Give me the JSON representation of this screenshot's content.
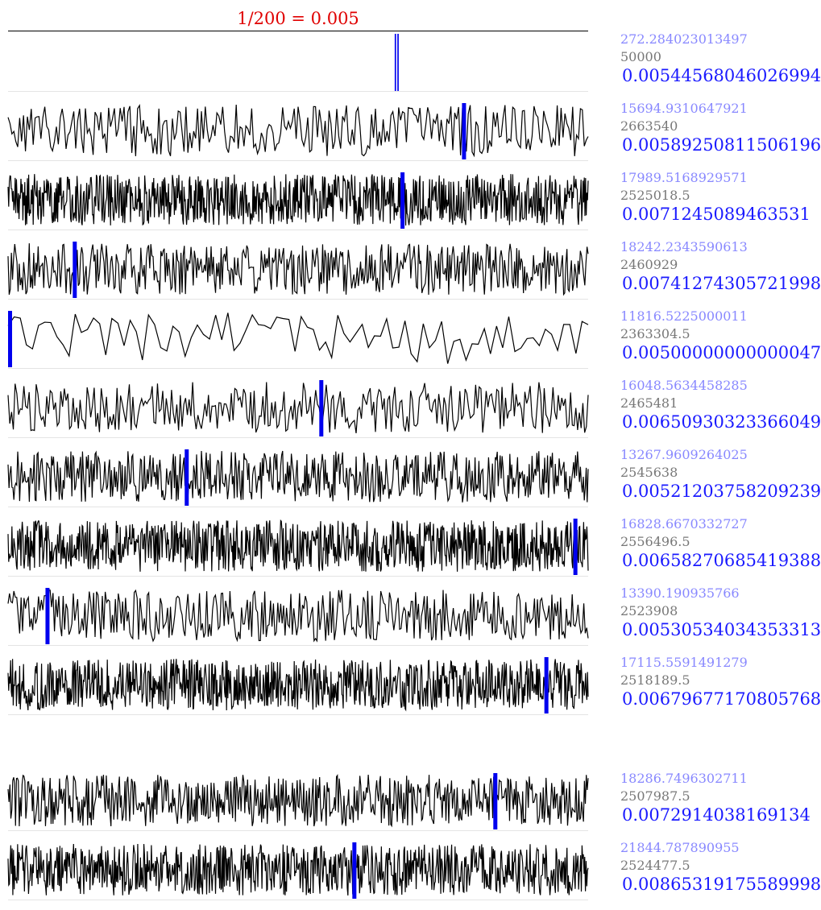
{
  "chart_data": {
    "type": "line",
    "title": "1/200 = 0.005",
    "xlabel": "",
    "ylabel": "",
    "colors": {
      "trace": "#000000",
      "marker": "#0000ee",
      "title": "#e00000",
      "label_top": "#8888ff",
      "label_mid": "#777777",
      "label_value": "#1a1aff"
    },
    "series": [
      {
        "label_top": "272.284023013497",
        "label_mid": "50000",
        "label_value": "0.00544568046026994",
        "marker_x": 0.67,
        "segments": 1,
        "seed": 11,
        "flat": true
      },
      {
        "label_top": "15694.9310647921",
        "label_mid": "2663540",
        "label_value": "0.00589250811506196",
        "marker_x": 0.786,
        "segments": 300,
        "seed": 23
      },
      {
        "label_top": "17989.5168929571",
        "label_mid": "2525018.5",
        "label_value": "0.0071245089463531",
        "marker_x": 0.68,
        "segments": 900,
        "seed": 37
      },
      {
        "label_top": "18242.2343590613",
        "label_mid": "2460929",
        "label_value": "0.00741274305721998",
        "marker_x": 0.115,
        "segments": 520,
        "seed": 41
      },
      {
        "label_top": "11816.5225000011",
        "label_mid": "2363304.5",
        "label_value": "0.00500000000000047",
        "marker_x": 0.002,
        "segments": 95,
        "seed": 53
      },
      {
        "label_top": "16048.5634458285",
        "label_mid": "2465481",
        "label_value": "0.00650930323366049",
        "marker_x": 0.54,
        "segments": 330,
        "seed": 61
      },
      {
        "label_top": "13267.9609264025",
        "label_mid": "2545638",
        "label_value": "0.00521203758209239",
        "marker_x": 0.308,
        "segments": 600,
        "seed": 71
      },
      {
        "label_top": "16828.6670332727",
        "label_mid": "2556496.5",
        "label_value": "0.00658270685419388",
        "marker_x": 0.978,
        "segments": 900,
        "seed": 83
      },
      {
        "label_top": "13390.190935766",
        "label_mid": "2523908",
        "label_value": "0.00530534034353313",
        "marker_x": 0.068,
        "segments": 400,
        "seed": 97
      },
      {
        "label_top": "17115.5591491279",
        "label_mid": "2518189.5",
        "label_value": "0.00679677170805768",
        "marker_x": 0.928,
        "segments": 900,
        "seed": 103
      },
      {
        "label_top": "18286.7496302711",
        "label_mid": "2507987.5",
        "label_value": "0.0072914038169134",
        "marker_x": 0.84,
        "segments": 620,
        "seed": 113
      },
      {
        "label_top": "21844.787890955",
        "label_mid": "2524477.5",
        "label_value": "0.00865319175589998",
        "marker_x": 0.597,
        "segments": 850,
        "seed": 127
      }
    ]
  }
}
